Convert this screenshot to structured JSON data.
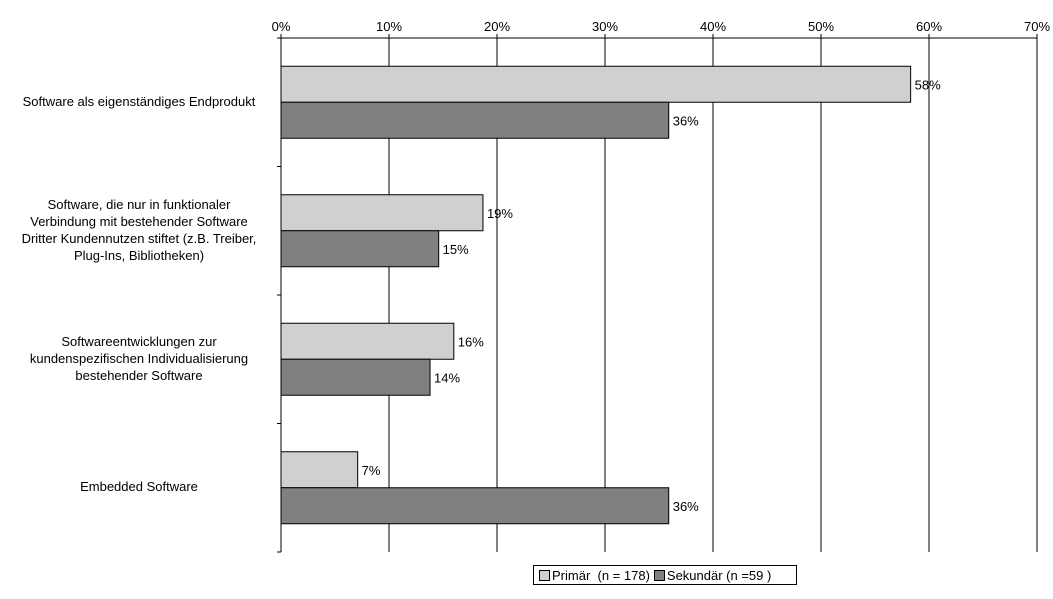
{
  "chart_data": {
    "type": "bar",
    "orientation": "horizontal",
    "categories": [
      "Software als eigenständiges Endprodukt",
      "Software, die nur in funktionaler Verbindung mit bestehender Software Dritter Kundennutzen stiftet (z.B. Treiber, Plug-Ins, Bibliotheken)",
      "Softwareentwicklungen zur kundenspezifischen Individualisierung bestehender Software",
      "Embedded Software"
    ],
    "category_lines": [
      [
        "Software als eigenständiges Endprodukt"
      ],
      [
        "Software, die nur in funktionaler",
        "Verbindung mit bestehender Software",
        "Dritter Kundennutzen stiftet (z.B. Treiber,",
        "Plug-Ins, Bibliotheken)"
      ],
      [
        "Softwareentwicklungen zur",
        "kundenspezifischen Individualisierung",
        "bestehender Software"
      ],
      [
        "Embedded Software"
      ]
    ],
    "series": [
      {
        "name": "Primär  (n = 178)",
        "color": "#d0d0d0",
        "values": [
          58.3,
          18.7,
          16.0,
          7.1
        ],
        "labels": [
          "58%",
          "19%",
          "16%",
          "7%"
        ]
      },
      {
        "name": "Sekundär (n =59 )",
        "color": "#808080",
        "values": [
          35.9,
          14.6,
          13.8,
          35.9
        ],
        "labels": [
          "36%",
          "15%",
          "14%",
          "36%"
        ]
      }
    ],
    "xlim": [
      0,
      70
    ],
    "xticks": [
      "0%",
      "10%",
      "20%",
      "30%",
      "40%",
      "50%",
      "60%",
      "70%"
    ],
    "x_axis_position": "top",
    "grid": true,
    "legend_position": "bottom",
    "title": "",
    "xlabel": "",
    "ylabel": ""
  }
}
